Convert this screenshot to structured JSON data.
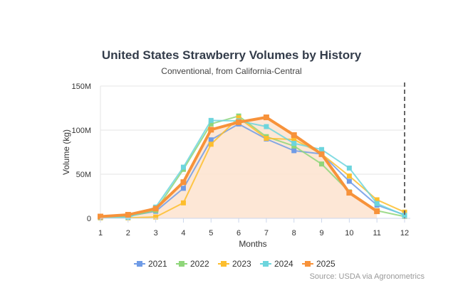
{
  "chart_data": {
    "type": "line",
    "title": "United States Strawberry Volumes by History",
    "subtitle": "Conventional, from California-Central",
    "xlabel": "Months",
    "ylabel": "Volume (kg)",
    "x": [
      1,
      2,
      3,
      4,
      5,
      6,
      7,
      8,
      9,
      10,
      11,
      12
    ],
    "x_tick_labels": [
      "1",
      "2",
      "3",
      "4",
      "5",
      "6",
      "7",
      "8",
      "9",
      "10",
      "11",
      "12"
    ],
    "ylim": [
      0,
      150000000
    ],
    "y_ticks": [
      0,
      50000000,
      100000000,
      150000000
    ],
    "y_tick_labels": [
      "0",
      "50M",
      "100M",
      "150M"
    ],
    "grid": "horizontal",
    "legend_position": "bottom",
    "marker": "square",
    "current_month_marker": 12,
    "source": "Source: USDA via Agronometrics",
    "series": [
      {
        "name": "2021",
        "color": "#6f9be6",
        "values": [
          1000000,
          2500000,
          8000000,
          34000000,
          89000000,
          107000000,
          90000000,
          76700000,
          73000000,
          42000000,
          15000000,
          4000000
        ]
      },
      {
        "name": "2022",
        "color": "#8fd67a",
        "values": [
          1000000,
          2000000,
          9000000,
          55500000,
          107000000,
          116000000,
          92600000,
          82000000,
          61600000,
          30000000,
          8700000,
          2000000
        ]
      },
      {
        "name": "2023",
        "color": "#fdbe2d",
        "values": [
          500000,
          500000,
          1500000,
          17500000,
          84000000,
          114000000,
          90700000,
          89400000,
          73000000,
          48000000,
          21000000,
          7000000
        ]
      },
      {
        "name": "2024",
        "color": "#6dd5dd",
        "values": [
          1000000,
          1000000,
          12700000,
          58000000,
          111000000,
          110500000,
          104000000,
          85000000,
          78000000,
          57000000,
          16700000,
          3400000
        ]
      },
      {
        "name": "2025",
        "color": "#f7923a",
        "fill": "#fde3cf",
        "values": [
          2000000,
          4000000,
          11000000,
          41000000,
          100500000,
          109000000,
          114500000,
          94400000,
          72700000,
          29000000,
          8000000,
          null
        ]
      }
    ]
  }
}
